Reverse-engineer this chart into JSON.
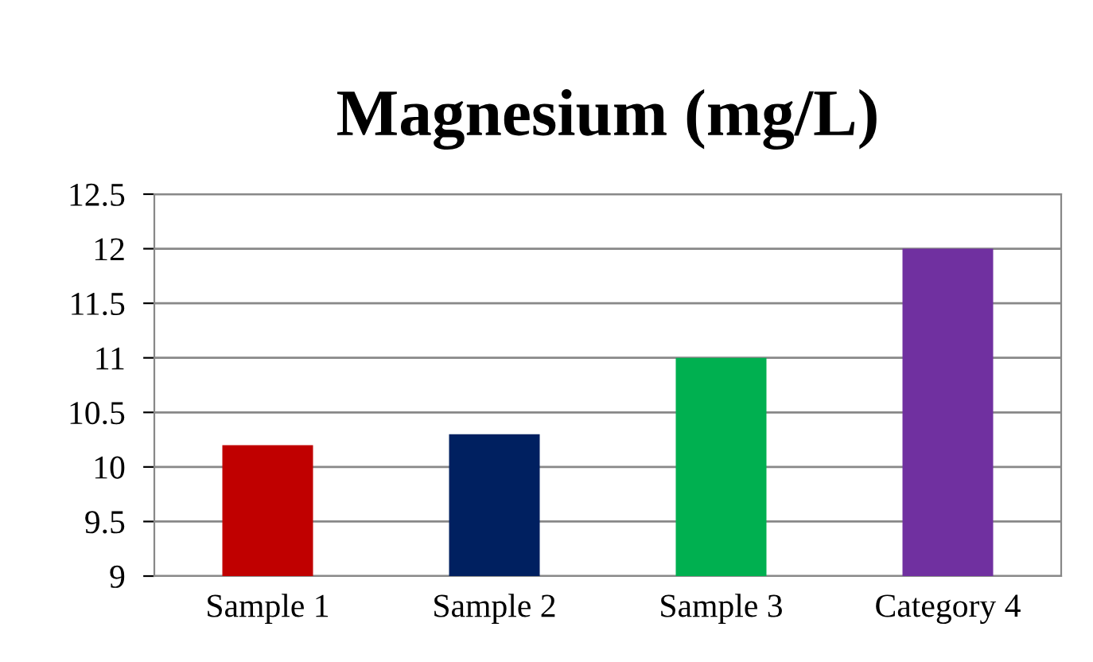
{
  "chart_data": {
    "type": "bar",
    "title": "Magnesium (mg/L)",
    "categories": [
      "Sample 1",
      "Sample 2",
      "Sample 3",
      "Category 4"
    ],
    "values": [
      10.2,
      10.3,
      11,
      12
    ],
    "colors": [
      "#c00000",
      "#002060",
      "#00b050",
      "#7030a0"
    ],
    "ylim": [
      9,
      12.5
    ],
    "yticks": [
      9,
      9.5,
      10,
      10.5,
      11,
      11.5,
      12,
      12.5
    ],
    "grid": "y",
    "legend": false
  }
}
